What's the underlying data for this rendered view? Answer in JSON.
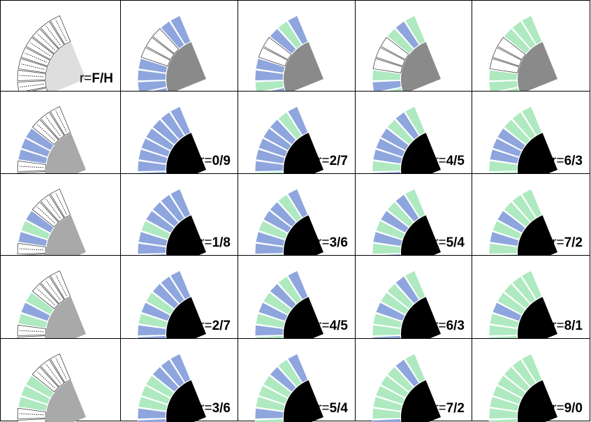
{
  "colors": {
    "blue": "#8ea6dd",
    "green": "#aee9c0",
    "empty": "#ffffff",
    "outline": "#444444",
    "hub_light": "#dedede",
    "hub_mid": "#a9a9a9",
    "hub_dark": "#8a8a8a",
    "hub_black": "#000000"
  },
  "rows": [
    {
      "cells": [
        {
          "label_prefix": "r=",
          "label_value": "F/H",
          "hub": "hub_light",
          "segments": [
            "empty",
            "empty",
            "empty",
            "empty",
            "empty",
            "empty",
            "empty",
            "empty",
            "empty"
          ]
        },
        {
          "label_prefix": "",
          "label_value": "",
          "hub": "hub_dark",
          "segments": [
            "blue",
            "blue",
            "empty",
            "empty",
            "empty",
            "blue",
            "blue",
            "blue",
            "blue"
          ]
        },
        {
          "label_prefix": "",
          "label_value": "",
          "hub": "hub_dark",
          "segments": [
            "blue",
            "green",
            "blue",
            "empty",
            "empty",
            "blue",
            "blue",
            "green",
            "blue"
          ]
        },
        {
          "label_prefix": "",
          "label_value": "",
          "hub": "hub_dark",
          "segments": [
            "green",
            "blue",
            "green",
            "empty",
            "empty",
            "empty",
            "green",
            "blue",
            "green"
          ]
        },
        {
          "label_prefix": "",
          "label_value": "",
          "hub": "hub_dark",
          "segments": [
            "green",
            "green",
            "green",
            "empty",
            "empty",
            "empty",
            "green",
            "green",
            "green"
          ]
        }
      ]
    },
    {
      "cells": [
        {
          "label_prefix": "",
          "label_value": "",
          "hub": "hub_mid",
          "segments": [
            "empty",
            "empty",
            "empty",
            "blue",
            "blue",
            "blue",
            "empty",
            "empty",
            "empty"
          ]
        },
        {
          "label_prefix": "r=",
          "label_value": "0/9",
          "hub": "hub_black",
          "segments": [
            "blue",
            "blue",
            "blue",
            "blue",
            "blue",
            "blue",
            "blue",
            "blue",
            "blue"
          ]
        },
        {
          "label_prefix": "r=",
          "label_value": "2/7",
          "hub": "hub_black",
          "segments": [
            "blue",
            "green",
            "blue",
            "blue",
            "blue",
            "blue",
            "blue",
            "green",
            "blue"
          ]
        },
        {
          "label_prefix": "r=",
          "label_value": "4/5",
          "hub": "hub_black",
          "segments": [
            "green",
            "blue",
            "green",
            "blue",
            "blue",
            "blue",
            "green",
            "blue",
            "green"
          ]
        },
        {
          "label_prefix": "r=",
          "label_value": "6/3",
          "hub": "hub_black",
          "segments": [
            "green",
            "green",
            "green",
            "blue",
            "blue",
            "blue",
            "green",
            "green",
            "green"
          ]
        }
      ]
    },
    {
      "cells": [
        {
          "label_prefix": "",
          "label_value": "",
          "hub": "hub_mid",
          "segments": [
            "empty",
            "empty",
            "empty",
            "blue",
            "green",
            "blue",
            "empty",
            "empty",
            "empty"
          ]
        },
        {
          "label_prefix": "r=",
          "label_value": "1/8",
          "hub": "hub_black",
          "segments": [
            "blue",
            "blue",
            "blue",
            "blue",
            "green",
            "blue",
            "blue",
            "blue",
            "blue"
          ]
        },
        {
          "label_prefix": "r=",
          "label_value": "3/6",
          "hub": "hub_black",
          "segments": [
            "blue",
            "green",
            "blue",
            "blue",
            "green",
            "blue",
            "blue",
            "green",
            "blue"
          ]
        },
        {
          "label_prefix": "r=",
          "label_value": "5/4",
          "hub": "hub_black",
          "segments": [
            "green",
            "blue",
            "green",
            "blue",
            "green",
            "blue",
            "green",
            "blue",
            "green"
          ]
        },
        {
          "label_prefix": "r=",
          "label_value": "7/2",
          "hub": "hub_black",
          "segments": [
            "green",
            "green",
            "green",
            "blue",
            "green",
            "blue",
            "green",
            "green",
            "green"
          ]
        }
      ]
    },
    {
      "cells": [
        {
          "label_prefix": "",
          "label_value": "",
          "hub": "hub_mid",
          "segments": [
            "empty",
            "empty",
            "empty",
            "green",
            "blue",
            "green",
            "empty",
            "empty",
            "empty"
          ]
        },
        {
          "label_prefix": "r=",
          "label_value": "2/7",
          "hub": "hub_black",
          "segments": [
            "blue",
            "blue",
            "blue",
            "green",
            "blue",
            "green",
            "blue",
            "blue",
            "blue"
          ]
        },
        {
          "label_prefix": "r=",
          "label_value": "4/5",
          "hub": "hub_black",
          "segments": [
            "blue",
            "green",
            "blue",
            "green",
            "blue",
            "green",
            "blue",
            "green",
            "blue"
          ]
        },
        {
          "label_prefix": "r=",
          "label_value": "6/3",
          "hub": "hub_black",
          "segments": [
            "green",
            "blue",
            "green",
            "green",
            "blue",
            "green",
            "green",
            "blue",
            "green"
          ]
        },
        {
          "label_prefix": "r=",
          "label_value": "8/1",
          "hub": "hub_black",
          "segments": [
            "green",
            "green",
            "green",
            "green",
            "blue",
            "green",
            "green",
            "green",
            "green"
          ]
        }
      ]
    },
    {
      "cells": [
        {
          "label_prefix": "",
          "label_value": "",
          "hub": "hub_mid",
          "segments": [
            "empty",
            "empty",
            "empty",
            "green",
            "green",
            "green",
            "empty",
            "empty",
            "empty"
          ]
        },
        {
          "label_prefix": "r=",
          "label_value": "3/6",
          "hub": "hub_black",
          "segments": [
            "blue",
            "blue",
            "blue",
            "green",
            "green",
            "green",
            "blue",
            "blue",
            "blue"
          ]
        },
        {
          "label_prefix": "r=",
          "label_value": "5/4",
          "hub": "hub_black",
          "segments": [
            "blue",
            "green",
            "blue",
            "green",
            "green",
            "green",
            "blue",
            "green",
            "blue"
          ]
        },
        {
          "label_prefix": "r=",
          "label_value": "7/2",
          "hub": "hub_black",
          "segments": [
            "green",
            "blue",
            "green",
            "green",
            "green",
            "green",
            "green",
            "blue",
            "green"
          ]
        },
        {
          "label_prefix": "r=",
          "label_value": "9/0",
          "hub": "hub_black",
          "segments": [
            "green",
            "green",
            "green",
            "green",
            "green",
            "green",
            "green",
            "green",
            "green"
          ]
        }
      ]
    }
  ]
}
